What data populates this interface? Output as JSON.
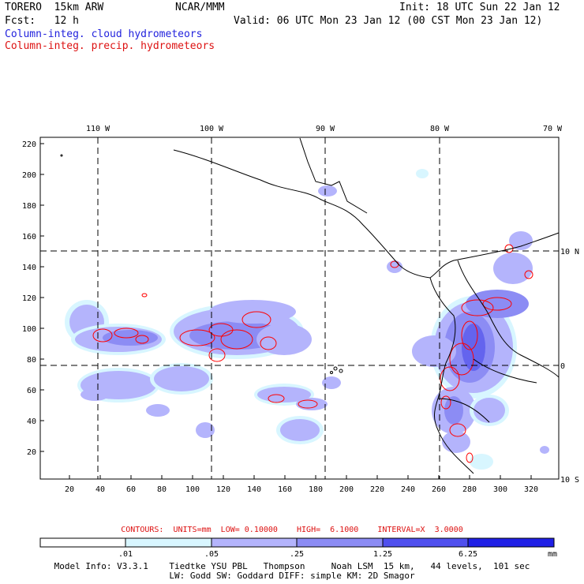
{
  "header": {
    "model": "TORERO  15km ARW",
    "org": "NCAR/MMM",
    "init": "Init: 18 UTC Sun 22 Jan 12",
    "fcst": "Fcst:   12 h",
    "valid": "Valid: 06 UTC Mon 23 Jan 12 (00 CST Mon 23 Jan 12)",
    "field_cloud": "Column-integ. cloud hydrometeors",
    "field_precip": "Column-integ. precip. hydrometeors"
  },
  "map": {
    "lon_labels": [
      "110 W",
      "100 W",
      "90 W",
      "80 W",
      "70 W"
    ],
    "lat_labels": [
      "10 N",
      "0",
      "10 S"
    ],
    "grid_x_ticks": [
      "20",
      "40",
      "60",
      "80",
      "100",
      "120",
      "140",
      "160",
      "180",
      "200",
      "220",
      "240",
      "260",
      "280",
      "300",
      "320"
    ],
    "grid_y_ticks": [
      "20",
      "40",
      "60",
      "80",
      "100",
      "120",
      "140",
      "160",
      "180",
      "200",
      "220"
    ],
    "colors": {
      "level1": "#d8f6ff",
      "level2": "#b4b4fc",
      "level3": "#8c8cf4",
      "level4": "#6464ee",
      "level5": "#3c3cee",
      "level6": "#2020e6",
      "precip_contour": "#ff0000",
      "coast": "#000000"
    }
  },
  "contours_text": "CONTOURS:  UNITS=mm  LOW= 0.10000    HIGH=  6.1000    INTERVAL=X  3.0000",
  "colorbar": {
    "labels": [
      ".01",
      ".05",
      ".25",
      "1.25",
      "6.25"
    ],
    "unit": "mm"
  },
  "footer": {
    "line1": "Model Info: V3.3.1    Tiedtke YSU PBL   Thompson     Noah LSM  15 km,   44 levels,  101 sec",
    "line2": "LW: Godd SW: Goddard DIFF: simple KM: 2D Smagor"
  }
}
